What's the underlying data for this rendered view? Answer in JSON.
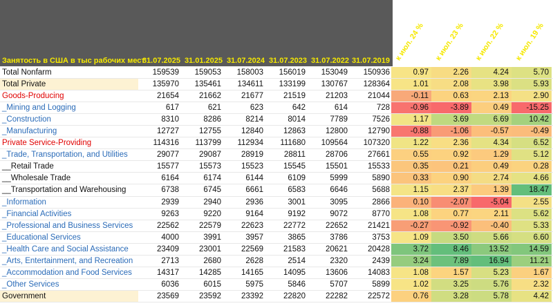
{
  "table": {
    "corner_label": "Занятость в США в тыс рабочих мест",
    "date_headers": [
      "31.07.2025",
      "31.01.2025",
      "31.07.2024",
      "31.07.2023",
      "31.07.2022",
      "31.07.2019"
    ],
    "pct_headers": [
      "к июл. 24 %",
      "к июл. 23 %",
      "к июл. 22 %",
      "к июл. 19 %"
    ],
    "rows": [
      {
        "name": "Total Nonfarm",
        "style": "black",
        "shade": false,
        "values": [
          "159539",
          "159053",
          "158003",
          "156019",
          "153049",
          "150936"
        ],
        "pct": [
          "0.97",
          "2.26",
          "4.24",
          "5.70"
        ],
        "colors": [
          "#f7e486",
          "#f7dc83",
          "#e6e283",
          "#dde183"
        ]
      },
      {
        "name": "Total Private",
        "style": "black",
        "shade": true,
        "values": [
          "135970",
          "135461",
          "134611",
          "133199",
          "130767",
          "128364"
        ],
        "pct": [
          "1.01",
          "2.08",
          "3.98",
          "5.93"
        ],
        "colors": [
          "#f7e486",
          "#f7dd84",
          "#e8e283",
          "#dbe083"
        ]
      },
      {
        "name": "Goods-Producing",
        "style": "red",
        "shade": false,
        "values": [
          "21654",
          "21662",
          "21677",
          "21519",
          "21203",
          "21044"
        ],
        "pct": [
          "-0.11",
          "0.63",
          "2.13",
          "2.90"
        ],
        "colors": [
          "#f8a979",
          "#fcd37f",
          "#fbd580",
          "#f4e085"
        ]
      },
      {
        "name": "_Mining and Logging",
        "style": "blue",
        "shade": false,
        "values": [
          "617",
          "621",
          "623",
          "642",
          "614",
          "728"
        ],
        "pct": [
          "-0.96",
          "-3.89",
          "0.49",
          "-15.25"
        ],
        "colors": [
          "#f8736f",
          "#f8696b",
          "#fcce7e",
          "#f8696b"
        ]
      },
      {
        "name": "_Construction",
        "style": "blue",
        "shade": false,
        "values": [
          "8310",
          "8286",
          "8214",
          "8014",
          "7789",
          "7526"
        ],
        "pct": [
          "1.17",
          "3.69",
          "6.69",
          "10.42"
        ],
        "colors": [
          "#f2e485",
          "#bfd97f",
          "#c1da80",
          "#a4d17d"
        ]
      },
      {
        "name": "_Manufacturing",
        "style": "blue",
        "shade": false,
        "values": [
          "12727",
          "12755",
          "12840",
          "12863",
          "12800",
          "12790"
        ],
        "pct": [
          "-0.88",
          "-1.06",
          "-0.57",
          "-0.49"
        ],
        "colors": [
          "#f8766f",
          "#f99b76",
          "#fcbe7b",
          "#fbbc7b"
        ]
      },
      {
        "name": "Private Service-Providing",
        "style": "red",
        "shade": false,
        "values": [
          "114316",
          "113799",
          "112934",
          "111680",
          "109564",
          "107320"
        ],
        "pct": [
          "1.22",
          "2.36",
          "4.34",
          "6.52"
        ],
        "colors": [
          "#f0e485",
          "#f8de84",
          "#e5e283",
          "#d6df82"
        ]
      },
      {
        "name": "_Trade, Transportation, and Utilities",
        "style": "blue",
        "shade": false,
        "values": [
          "29077",
          "29087",
          "28919",
          "28811",
          "28706",
          "27661"
        ],
        "pct": [
          "0.55",
          "0.92",
          "1.29",
          "5.12"
        ],
        "colors": [
          "#fcd080",
          "#fcd27f",
          "#fcca7e",
          "#e0e183"
        ]
      },
      {
        "name": "__Retail Trade",
        "style": "black",
        "shade": false,
        "values": [
          "15577",
          "15573",
          "15523",
          "15545",
          "15501",
          "15533"
        ],
        "pct": [
          "0.35",
          "0.21",
          "0.49",
          "0.28"
        ],
        "colors": [
          "#fbc67c",
          "#fcc47c",
          "#fcce7e",
          "#fbd37f"
        ]
      },
      {
        "name": "__Wholesale Trade",
        "style": "black",
        "shade": false,
        "values": [
          "6164",
          "6174",
          "6144",
          "6109",
          "5999",
          "5890"
        ],
        "pct": [
          "0.33",
          "0.90",
          "2.74",
          "4.66"
        ],
        "colors": [
          "#fbc47c",
          "#fcd27f",
          "#f4dc84",
          "#e5e283"
        ]
      },
      {
        "name": "__Transportation and Warehousing",
        "style": "black",
        "shade": false,
        "values": [
          "6738",
          "6745",
          "6661",
          "6583",
          "6646",
          "5688"
        ],
        "pct": [
          "1.15",
          "2.37",
          "1.39",
          "18.47"
        ],
        "colors": [
          "#f4e486",
          "#f8de84",
          "#fcca7e",
          "#63be7b"
        ]
      },
      {
        "name": "_Information",
        "style": "blue",
        "shade": false,
        "values": [
          "2939",
          "2940",
          "2936",
          "3001",
          "3095",
          "2866"
        ],
        "pct": [
          "0.10",
          "-2.07",
          "-5.04",
          "2.55"
        ],
        "colors": [
          "#fbb27a",
          "#f88d73",
          "#f8696b",
          "#f4e085"
        ]
      },
      {
        "name": "_Financial Activities",
        "style": "blue",
        "shade": false,
        "values": [
          "9263",
          "9220",
          "9164",
          "9192",
          "9072",
          "8770"
        ],
        "pct": [
          "1.08",
          "0.77",
          "2.11",
          "5.62"
        ],
        "colors": [
          "#f6e486",
          "#fcd37f",
          "#fbd580",
          "#dce183"
        ]
      },
      {
        "name": "_Professional and Business Services",
        "style": "blue",
        "shade": false,
        "values": [
          "22562",
          "22579",
          "22623",
          "22772",
          "22652",
          "21421"
        ],
        "pct": [
          "-0.27",
          "-0.92",
          "-0.40",
          "5.33"
        ],
        "colors": [
          "#f89e76",
          "#f99575",
          "#fbbf7b",
          "#dfe183"
        ]
      },
      {
        "name": "_Educational Services",
        "style": "blue",
        "shade": false,
        "values": [
          "4000",
          "3991",
          "3957",
          "3865",
          "3786",
          "3753"
        ],
        "pct": [
          "1.09",
          "3.50",
          "5.66",
          "6.60"
        ],
        "colors": [
          "#f6e486",
          "#c6da80",
          "#cedc81",
          "#d5df82"
        ]
      },
      {
        "name": "_Health Care and Social Assistance",
        "style": "blue",
        "shade": false,
        "values": [
          "23409",
          "23001",
          "22569",
          "21583",
          "20621",
          "20428"
        ],
        "pct": [
          "3.72",
          "8.46",
          "13.52",
          "14.59"
        ],
        "colors": [
          "#7ec57c",
          "#63be7b",
          "#8bc97d",
          "#82c77c"
        ]
      },
      {
        "name": "_Arts, Entertainment, and Recreation",
        "style": "blue",
        "shade": false,
        "values": [
          "2713",
          "2680",
          "2628",
          "2514",
          "2320",
          "2439"
        ],
        "pct": [
          "3.24",
          "7.89",
          "16.94",
          "11.21"
        ],
        "colors": [
          "#96cc7e",
          "#6dc17c",
          "#63be7b",
          "#9ccf7e"
        ]
      },
      {
        "name": "_Accommodation and Food Services",
        "style": "blue",
        "shade": false,
        "values": [
          "14317",
          "14285",
          "14165",
          "14095",
          "13606",
          "14083"
        ],
        "pct": [
          "1.08",
          "1.57",
          "5.23",
          "1.67"
        ],
        "colors": [
          "#f6e486",
          "#fcd47f",
          "#d8df82",
          "#fbd07f"
        ]
      },
      {
        "name": "_Other Services",
        "style": "blue",
        "shade": false,
        "values": [
          "6036",
          "6015",
          "5975",
          "5846",
          "5707",
          "5899"
        ],
        "pct": [
          "1.02",
          "3.25",
          "5.76",
          "2.32"
        ],
        "colors": [
          "#f7e486",
          "#d2dd81",
          "#cddc81",
          "#f7de84"
        ]
      },
      {
        "name": "Government",
        "style": "black",
        "shade": true,
        "values": [
          "23569",
          "23592",
          "23392",
          "22820",
          "22282",
          "22572"
        ],
        "pct": [
          "0.76",
          "3.28",
          "5.78",
          "4.42"
        ],
        "colors": [
          "#fcd17f",
          "#d0dd81",
          "#ccdc81",
          "#e7e283"
        ]
      }
    ]
  }
}
